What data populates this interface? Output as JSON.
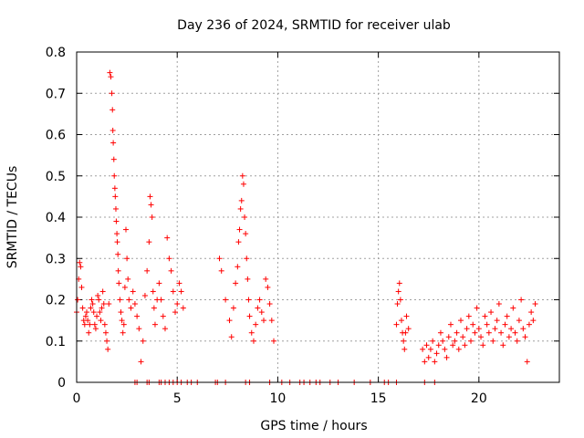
{
  "chart_data": {
    "type": "scatter",
    "title": "Day 236 of 2024, SRMTID for receiver ulab",
    "xlabel": "GPS time / hours",
    "ylabel": "SRMTID / TECUs",
    "xlim": [
      0,
      24
    ],
    "ylim": [
      0,
      0.8
    ],
    "xticks": [
      0,
      5,
      10,
      15,
      20
    ],
    "yticks": [
      0,
      0.1,
      0.2,
      0.3,
      0.4,
      0.5,
      0.6,
      0.7,
      0.8
    ],
    "grid": true,
    "marker": "+",
    "color": "#ff0000",
    "series": [
      {
        "name": "SRMTID",
        "x": [
          0.0,
          0.05,
          0.1,
          0.15,
          0.2,
          0.25,
          0.3,
          0.35,
          0.4,
          0.45,
          0.5,
          0.55,
          0.6,
          0.65,
          0.7,
          0.75,
          0.8,
          0.85,
          0.9,
          0.95,
          1.0,
          1.05,
          1.1,
          1.15,
          1.2,
          1.25,
          1.3,
          1.35,
          1.4,
          1.45,
          1.5,
          1.55,
          1.6,
          1.65,
          1.7,
          1.75,
          1.78,
          1.8,
          1.82,
          1.85,
          1.87,
          1.9,
          1.92,
          1.95,
          1.97,
          2.0,
          2.02,
          2.05,
          2.07,
          2.1,
          2.15,
          2.2,
          2.25,
          2.3,
          2.35,
          2.4,
          2.45,
          2.5,
          2.55,
          2.6,
          2.7,
          2.8,
          2.9,
          3.0,
          3.1,
          3.2,
          3.3,
          3.4,
          3.5,
          3.6,
          3.65,
          3.7,
          3.75,
          3.8,
          3.85,
          3.9,
          4.0,
          4.1,
          4.2,
          4.3,
          4.4,
          4.5,
          4.6,
          4.7,
          4.8,
          4.9,
          5.0,
          5.1,
          5.2,
          5.3,
          7.1,
          7.2,
          7.4,
          7.6,
          7.7,
          7.8,
          7.9,
          8.0,
          8.05,
          8.1,
          8.15,
          8.2,
          8.25,
          8.3,
          8.35,
          8.4,
          8.45,
          8.5,
          8.55,
          8.6,
          8.7,
          8.8,
          8.9,
          9.0,
          9.1,
          9.2,
          9.3,
          9.4,
          9.5,
          9.6,
          9.7,
          9.8,
          15.9,
          15.95,
          16.0,
          16.05,
          16.1,
          16.15,
          16.2,
          16.25,
          16.3,
          16.35,
          16.4,
          16.5,
          17.2,
          17.3,
          17.4,
          17.5,
          17.6,
          17.7,
          17.8,
          17.9,
          18.0,
          18.1,
          18.2,
          18.3,
          18.4,
          18.5,
          18.6,
          18.7,
          18.8,
          18.9,
          19.0,
          19.1,
          19.2,
          19.3,
          19.4,
          19.5,
          19.6,
          19.7,
          19.8,
          19.9,
          20.0,
          20.1,
          20.2,
          20.3,
          20.4,
          20.5,
          20.6,
          20.7,
          20.8,
          20.9,
          21.0,
          21.1,
          21.2,
          21.3,
          21.4,
          21.5,
          21.6,
          21.7,
          21.8,
          21.9,
          22.0,
          22.1,
          22.2,
          22.3,
          22.4,
          22.5,
          22.6,
          22.7,
          22.8,
          2.9,
          3.0,
          3.5,
          3.6,
          4.1,
          4.2,
          4.4,
          4.6,
          4.8,
          5.0,
          5.2,
          5.5,
          5.7,
          6.0,
          6.9,
          7.0,
          7.4,
          8.4,
          8.6,
          9.6,
          10.2,
          10.6,
          11.1,
          11.3,
          11.6,
          11.9,
          12.1,
          12.6,
          13.0,
          13.8,
          14.6,
          15.3,
          15.5,
          15.9,
          17.3,
          17.8
        ],
        "y": [
          0.17,
          0.2,
          0.25,
          0.29,
          0.28,
          0.23,
          0.18,
          0.15,
          0.14,
          0.16,
          0.17,
          0.15,
          0.12,
          0.14,
          0.18,
          0.2,
          0.19,
          0.17,
          0.14,
          0.13,
          0.16,
          0.21,
          0.2,
          0.17,
          0.15,
          0.18,
          0.22,
          0.19,
          0.14,
          0.12,
          0.1,
          0.08,
          0.19,
          0.75,
          0.74,
          0.7,
          0.66,
          0.61,
          0.58,
          0.54,
          0.5,
          0.47,
          0.45,
          0.42,
          0.39,
          0.36,
          0.34,
          0.31,
          0.27,
          0.24,
          0.2,
          0.17,
          0.15,
          0.12,
          0.14,
          0.23,
          0.37,
          0.3,
          0.25,
          0.2,
          0.18,
          0.22,
          0.19,
          0.16,
          0.13,
          0.05,
          0.1,
          0.21,
          0.27,
          0.34,
          0.45,
          0.43,
          0.4,
          0.22,
          0.18,
          0.14,
          0.2,
          0.24,
          0.2,
          0.16,
          0.13,
          0.35,
          0.3,
          0.27,
          0.22,
          0.17,
          0.19,
          0.24,
          0.22,
          0.18,
          0.3,
          0.27,
          0.2,
          0.15,
          0.11,
          0.18,
          0.24,
          0.28,
          0.34,
          0.37,
          0.42,
          0.44,
          0.5,
          0.48,
          0.4,
          0.36,
          0.3,
          0.25,
          0.2,
          0.16,
          0.12,
          0.1,
          0.14,
          0.18,
          0.2,
          0.17,
          0.15,
          0.25,
          0.23,
          0.19,
          0.15,
          0.1,
          0.14,
          0.19,
          0.22,
          0.24,
          0.2,
          0.15,
          0.12,
          0.1,
          0.08,
          0.12,
          0.16,
          0.13,
          0.08,
          0.05,
          0.09,
          0.06,
          0.08,
          0.1,
          0.05,
          0.07,
          0.09,
          0.12,
          0.1,
          0.08,
          0.06,
          0.11,
          0.14,
          0.09,
          0.1,
          0.12,
          0.08,
          0.15,
          0.11,
          0.09,
          0.13,
          0.16,
          0.1,
          0.14,
          0.12,
          0.18,
          0.13,
          0.11,
          0.09,
          0.16,
          0.14,
          0.12,
          0.17,
          0.1,
          0.13,
          0.15,
          0.19,
          0.12,
          0.09,
          0.14,
          0.16,
          0.11,
          0.13,
          0.18,
          0.12,
          0.1,
          0.15,
          0.2,
          0.13,
          0.11,
          0.05,
          0.14,
          0.17,
          0.15,
          0.19,
          0,
          0,
          0,
          0,
          0,
          0,
          0,
          0,
          0,
          0,
          0,
          0,
          0,
          0,
          0,
          0,
          0,
          0,
          0,
          0,
          0,
          0,
          0,
          0,
          0,
          0,
          0,
          0,
          0,
          0,
          0,
          0,
          0,
          0,
          0,
          0
        ]
      }
    ]
  }
}
